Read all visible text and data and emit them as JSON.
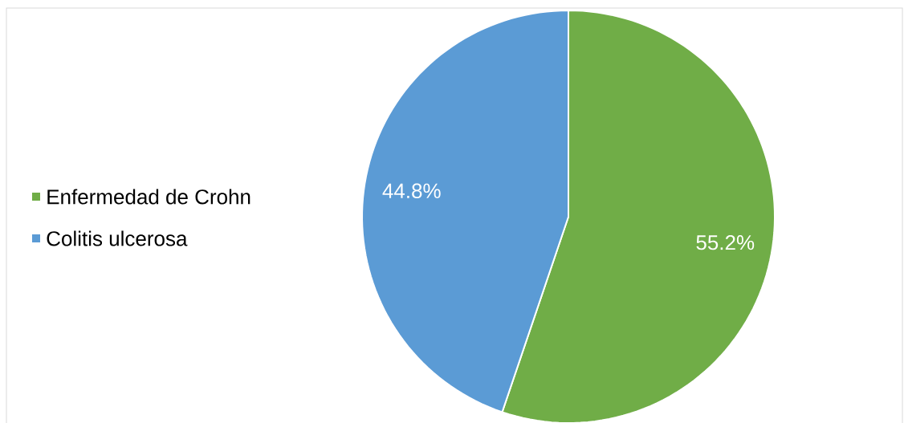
{
  "chart_data": {
    "type": "pie",
    "categories": [
      "Enfermedad de Crohn",
      "Colitis ulcerosa"
    ],
    "values": [
      55.2,
      44.8
    ],
    "colors": [
      "#70ad47",
      "#5b9bd5"
    ],
    "value_labels": [
      "55.2%",
      "44.8%"
    ],
    "legend": "left"
  }
}
